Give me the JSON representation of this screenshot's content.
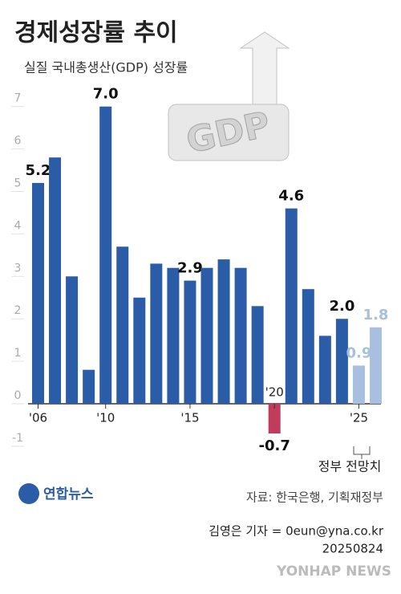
{
  "chart_data": {
    "type": "bar",
    "title": "경제성장률 추이",
    "subtitle": "실질 국내총생산(GDP) 성장률",
    "illustration_text": "GDP",
    "categories": [
      "'06",
      null,
      null,
      null,
      "'10",
      null,
      null,
      null,
      null,
      "'15",
      null,
      null,
      null,
      null,
      "'20",
      null,
      null,
      null,
      null,
      "'25",
      null
    ],
    "values": [
      5.2,
      5.8,
      3.0,
      0.8,
      7.0,
      3.7,
      2.5,
      3.3,
      3.2,
      2.9,
      3.2,
      3.4,
      3.2,
      2.3,
      -0.7,
      4.6,
      2.7,
      1.6,
      2.0,
      0.9,
      1.8
    ],
    "value_labels": [
      "5.2",
      null,
      null,
      null,
      "7.0",
      null,
      null,
      null,
      null,
      "2.9",
      null,
      null,
      null,
      null,
      "-0.7",
      "4.6",
      null,
      null,
      "2.0",
      "0.9",
      "1.8"
    ],
    "colors": [
      "#2b5ca8",
      "#2b5ca8",
      "#2b5ca8",
      "#2b5ca8",
      "#2b5ca8",
      "#2b5ca8",
      "#2b5ca8",
      "#2b5ca8",
      "#2b5ca8",
      "#2b5ca8",
      "#2b5ca8",
      "#2b5ca8",
      "#2b5ca8",
      "#2b5ca8",
      "#c03b5c",
      "#2b5ca8",
      "#2b5ca8",
      "#2b5ca8",
      "#2b5ca8",
      "#a8bfdf",
      "#a8bfdf"
    ],
    "ylim": [
      -1.2,
      7.4
    ],
    "yticks": [
      -1,
      0,
      1,
      2,
      3,
      4,
      5,
      6,
      7
    ],
    "grid": false,
    "annotation": "정부 전망치",
    "source": "자료: 한국은행, 기획재정부",
    "logo": "연합뉴스",
    "byline": "김영은 기자 = 0eun@yna.co.kr",
    "date": "20250824",
    "watermark": "YONHAP NEWS"
  }
}
